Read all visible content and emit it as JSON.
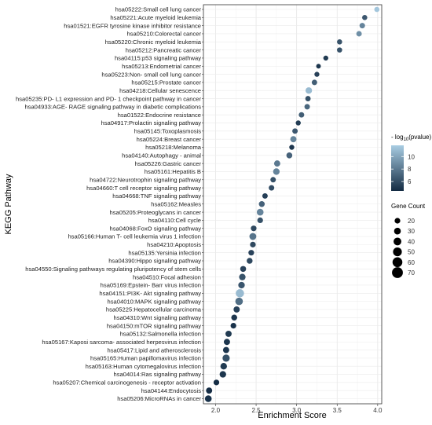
{
  "chart_data": {
    "type": "scatter",
    "xlabel": "Enrichment Score",
    "ylabel": "KEGG Pathway",
    "xlim": [
      1.85,
      4.05
    ],
    "xticks": [
      "2.0",
      "2.5",
      "3.0",
      "3.5",
      "4.0"
    ],
    "grid": true,
    "legend_position": "right",
    "color_legend": {
      "title_prefix": "- log",
      "title_subscript": "10",
      "title_suffix": "(pvalue)",
      "range": [
        4.5,
        11.8
      ],
      "ticks": [
        "10",
        "8",
        "6"
      ],
      "low_color": "#132b43",
      "high_color": "#a9cde3"
    },
    "size_legend": {
      "title": "Gene Count",
      "entries": [
        "20",
        "30",
        "40",
        "50",
        "60",
        "70"
      ]
    },
    "points": [
      {
        "label": "hsa05222:Small cell lung cancer",
        "x": 3.99,
        "count": 15,
        "logp": 11.5
      },
      {
        "label": "hsa05221:Acute myeloid leukemia",
        "x": 3.84,
        "count": 15,
        "logp": 6.5
      },
      {
        "label": "hsa01521:EGFR tyrosine kinase inhibitor resistance",
        "x": 3.81,
        "count": 18,
        "logp": 8.5
      },
      {
        "label": "hsa05210:Colorectal cancer",
        "x": 3.77,
        "count": 18,
        "logp": 9.0
      },
      {
        "label": "hsa05220:Chronic myeloid leukemia",
        "x": 3.53,
        "count": 15,
        "logp": 6.3
      },
      {
        "label": "hsa05212:Pancreatic cancer",
        "x": 3.53,
        "count": 15,
        "logp": 6.3
      },
      {
        "label": "hsa04115:p53 signaling pathway",
        "x": 3.36,
        "count": 13,
        "logp": 5.2
      },
      {
        "label": "hsa05213:Endometrial cancer",
        "x": 3.27,
        "count": 10,
        "logp": 5.0
      },
      {
        "label": "hsa05223:Non- small cell lung cancer",
        "x": 3.25,
        "count": 13,
        "logp": 5.5
      },
      {
        "label": "hsa05215:Prostate cancer",
        "x": 3.22,
        "count": 18,
        "logp": 6.8
      },
      {
        "label": "hsa04218:Cellular senescence",
        "x": 3.15,
        "count": 28,
        "logp": 11.0
      },
      {
        "label": "hsa05235:PD- L1 expression and PD- 1 checkpoint pathway in cancer",
        "x": 3.14,
        "count": 17,
        "logp": 6.2
      },
      {
        "label": "hsa04933:AGE- RAGE signaling pathway in diabetic complications",
        "x": 3.13,
        "count": 18,
        "logp": 7.2
      },
      {
        "label": "hsa01522:Endocrine resistance",
        "x": 3.06,
        "count": 18,
        "logp": 6.8
      },
      {
        "label": "hsa04917:Prolactin signaling pathway",
        "x": 3.02,
        "count": 14,
        "logp": 5.3
      },
      {
        "label": "hsa05145:Toxoplasmosis",
        "x": 2.98,
        "count": 18,
        "logp": 6.5
      },
      {
        "label": "hsa05224:Breast cancer",
        "x": 2.96,
        "count": 25,
        "logp": 8.5
      },
      {
        "label": "hsa05218:Melanoma",
        "x": 2.94,
        "count": 14,
        "logp": 5.0
      },
      {
        "label": "hsa04140:Autophagy - animal",
        "x": 2.91,
        "count": 22,
        "logp": 7.0
      },
      {
        "label": "hsa05226:Gastric cancer",
        "x": 2.76,
        "count": 25,
        "logp": 8.0
      },
      {
        "label": "hsa05161:Hepatitis B",
        "x": 2.75,
        "count": 28,
        "logp": 8.5
      },
      {
        "label": "hsa04722:Neurotrophin signaling pathway",
        "x": 2.71,
        "count": 18,
        "logp": 6.2
      },
      {
        "label": "hsa04660:T cell receptor signaling pathway",
        "x": 2.69,
        "count": 18,
        "logp": 6.0
      },
      {
        "label": "hsa04668:TNF signaling pathway",
        "x": 2.61,
        "count": 18,
        "logp": 5.4
      },
      {
        "label": "hsa05162:Measles",
        "x": 2.57,
        "count": 22,
        "logp": 7.0
      },
      {
        "label": "hsa05205:Proteoglycans in cancer",
        "x": 2.55,
        "count": 30,
        "logp": 8.5
      },
      {
        "label": "hsa04110:Cell cycle",
        "x": 2.55,
        "count": 20,
        "logp": 6.2
      },
      {
        "label": "hsa04068:FoxO signaling pathway",
        "x": 2.47,
        "count": 20,
        "logp": 5.8
      },
      {
        "label": "hsa05166:Human T- cell leukemia virus 1 infection",
        "x": 2.46,
        "count": 32,
        "logp": 7.8
      },
      {
        "label": "hsa04210:Apoptosis",
        "x": 2.46,
        "count": 20,
        "logp": 5.8
      },
      {
        "label": "hsa05135:Yersinia infection",
        "x": 2.44,
        "count": 20,
        "logp": 5.6
      },
      {
        "label": "hsa04390:Hippo signaling pathway",
        "x": 2.42,
        "count": 22,
        "logp": 5.8
      },
      {
        "label": "hsa04550:Signaling pathways regulating pluripotency of stem cells",
        "x": 2.34,
        "count": 22,
        "logp": 5.5
      },
      {
        "label": "hsa04510:Focal adhesion",
        "x": 2.33,
        "count": 28,
        "logp": 6.3
      },
      {
        "label": "hsa05169:Epstein- Barr virus infection",
        "x": 2.32,
        "count": 28,
        "logp": 6.4
      },
      {
        "label": "hsa04151:PI3K- Akt signaling pathway",
        "x": 2.3,
        "count": 45,
        "logp": 11.0
      },
      {
        "label": "hsa04010:MAPK signaling pathway",
        "x": 2.29,
        "count": 38,
        "logp": 7.5
      },
      {
        "label": "hsa05225:Hepatocellular carcinoma",
        "x": 2.26,
        "count": 25,
        "logp": 5.5
      },
      {
        "label": "hsa04310:Wnt signaling pathway",
        "x": 2.23,
        "count": 22,
        "logp": 5.0
      },
      {
        "label": "hsa04150:mTOR signaling pathway",
        "x": 2.22,
        "count": 20,
        "logp": 4.8
      },
      {
        "label": "hsa05132:Salmonella infection",
        "x": 2.16,
        "count": 25,
        "logp": 5.2
      },
      {
        "label": "hsa05167:Kaposi sarcoma- associated herpesvirus infection",
        "x": 2.14,
        "count": 25,
        "logp": 5.0
      },
      {
        "label": "hsa05417:Lipid and atherosclerosis",
        "x": 2.13,
        "count": 25,
        "logp": 5.0
      },
      {
        "label": "hsa05165:Human papillomavirus infection",
        "x": 2.13,
        "count": 35,
        "logp": 6.2
      },
      {
        "label": "hsa05163:Human cytomegalovirus infection",
        "x": 2.1,
        "count": 28,
        "logp": 5.2
      },
      {
        "label": "hsa04014:Ras signaling pathway",
        "x": 2.09,
        "count": 28,
        "logp": 5.0
      },
      {
        "label": "hsa05207:Chemical carcinogenesis -  receptor activation",
        "x": 2.01,
        "count": 20,
        "logp": 4.6
      },
      {
        "label": "hsa04144:Endocytosis",
        "x": 1.92,
        "count": 25,
        "logp": 4.6
      },
      {
        "label": "hsa05206:MicroRNAs in cancer",
        "x": 1.91,
        "count": 30,
        "logp": 4.8
      }
    ]
  }
}
